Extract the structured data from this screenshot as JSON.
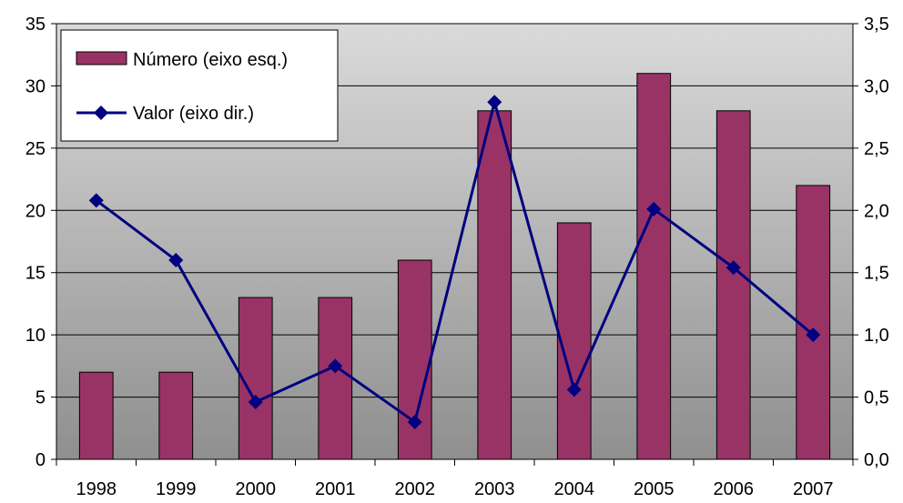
{
  "chart_data": {
    "type": "bar",
    "title": "",
    "xlabel": "",
    "categories": [
      "1998",
      "1999",
      "2000",
      "2001",
      "2002",
      "2003",
      "2004",
      "2005",
      "2006",
      "2007"
    ],
    "series": [
      {
        "name": "Número (eixo esq.)",
        "type": "bar",
        "axis": "left",
        "color": "#993366",
        "values": [
          7,
          7,
          13,
          13,
          16,
          28,
          19,
          31,
          28,
          22
        ]
      },
      {
        "name": "Valor (eixo dir.)",
        "type": "line",
        "axis": "right",
        "color": "#000080",
        "marker": "diamond",
        "values": [
          2.08,
          1.6,
          0.46,
          0.75,
          0.3,
          2.87,
          0.56,
          2.01,
          1.54,
          1.0
        ]
      }
    ],
    "y_left": {
      "min": 0,
      "max": 35,
      "step": 5,
      "ticks": [
        "0",
        "5",
        "10",
        "15",
        "20",
        "25",
        "30",
        "35"
      ]
    },
    "y_right": {
      "min": 0,
      "max": 3.5,
      "step": 0.5,
      "ticks": [
        "0,0",
        "0,5",
        "1,0",
        "1,5",
        "2,0",
        "2,5",
        "3,0",
        "3,5"
      ]
    },
    "grid": true,
    "legend": "top-left",
    "plot_background": "gradient-gray"
  }
}
